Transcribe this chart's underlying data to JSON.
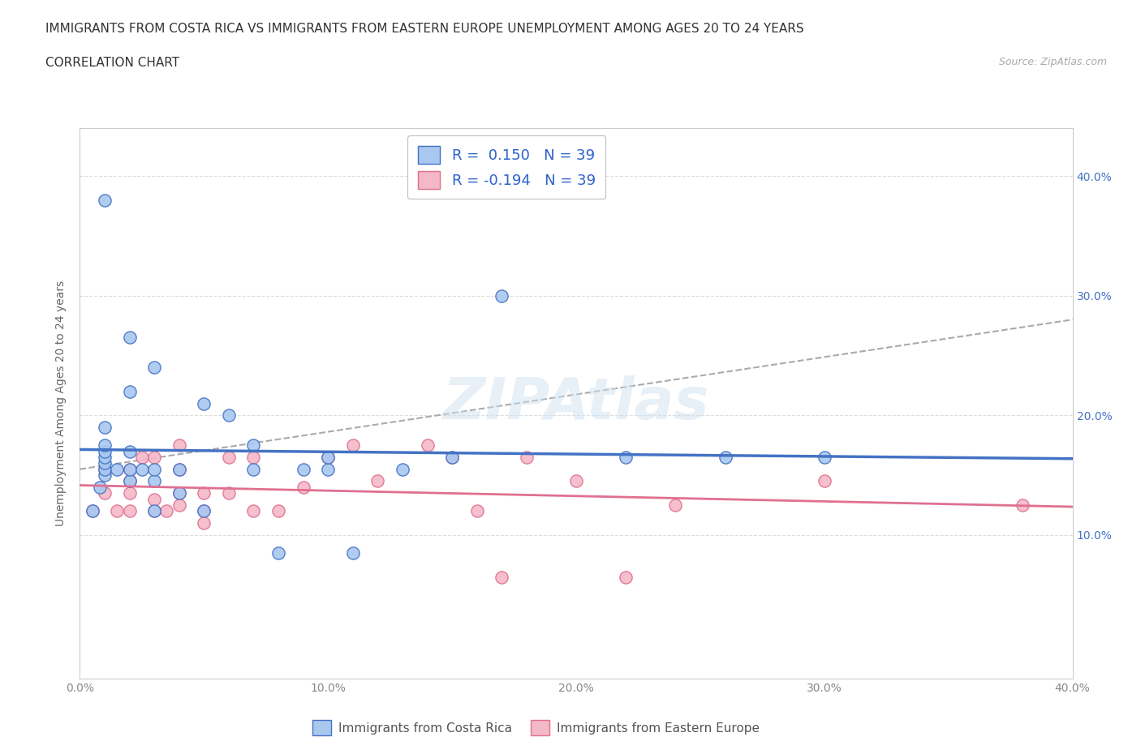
{
  "title_line1": "IMMIGRANTS FROM COSTA RICA VS IMMIGRANTS FROM EASTERN EUROPE UNEMPLOYMENT AMONG AGES 20 TO 24 YEARS",
  "title_line2": "CORRELATION CHART",
  "source_text": "Source: ZipAtlas.com",
  "ylabel": "Unemployment Among Ages 20 to 24 years",
  "xlim": [
    0.0,
    0.4
  ],
  "ylim": [
    -0.02,
    0.44
  ],
  "xtick_positions": [
    0.0,
    0.1,
    0.2,
    0.3,
    0.4
  ],
  "ytick_positions": [
    0.1,
    0.2,
    0.3,
    0.4
  ],
  "blue_color": "#a8c8f0",
  "pink_color": "#f4b8c8",
  "blue_line_color": "#4472c4",
  "pink_line_color": "#e07090",
  "gray_line_color": "#aaaaaa",
  "watermark_color": "#c8d8e8",
  "legend_label1": "Immigrants from Costa Rica",
  "legend_label2": "Immigrants from Eastern Europe",
  "blue_r": 0.15,
  "pink_r": -0.194,
  "blue_scatter_x": [
    0.005,
    0.008,
    0.01,
    0.01,
    0.01,
    0.01,
    0.01,
    0.01,
    0.01,
    0.015,
    0.02,
    0.02,
    0.02,
    0.02,
    0.02,
    0.025,
    0.03,
    0.03,
    0.03,
    0.03,
    0.04,
    0.04,
    0.05,
    0.05,
    0.06,
    0.07,
    0.07,
    0.08,
    0.09,
    0.1,
    0.1,
    0.11,
    0.13,
    0.15,
    0.17,
    0.22,
    0.26,
    0.3,
    0.01
  ],
  "blue_scatter_y": [
    0.12,
    0.14,
    0.15,
    0.155,
    0.16,
    0.165,
    0.17,
    0.175,
    0.19,
    0.155,
    0.145,
    0.155,
    0.17,
    0.22,
    0.265,
    0.155,
    0.12,
    0.145,
    0.155,
    0.24,
    0.135,
    0.155,
    0.12,
    0.21,
    0.2,
    0.155,
    0.175,
    0.085,
    0.155,
    0.155,
    0.165,
    0.085,
    0.155,
    0.165,
    0.3,
    0.165,
    0.165,
    0.165,
    0.38
  ],
  "pink_scatter_x": [
    0.005,
    0.01,
    0.01,
    0.015,
    0.02,
    0.02,
    0.02,
    0.02,
    0.025,
    0.03,
    0.03,
    0.03,
    0.035,
    0.04,
    0.04,
    0.04,
    0.04,
    0.05,
    0.05,
    0.05,
    0.06,
    0.06,
    0.07,
    0.07,
    0.08,
    0.09,
    0.1,
    0.11,
    0.12,
    0.14,
    0.15,
    0.16,
    0.17,
    0.18,
    0.2,
    0.22,
    0.24,
    0.3,
    0.38
  ],
  "pink_scatter_y": [
    0.12,
    0.135,
    0.155,
    0.12,
    0.12,
    0.135,
    0.145,
    0.155,
    0.165,
    0.12,
    0.13,
    0.165,
    0.12,
    0.125,
    0.135,
    0.155,
    0.175,
    0.11,
    0.12,
    0.135,
    0.135,
    0.165,
    0.12,
    0.165,
    0.12,
    0.14,
    0.165,
    0.175,
    0.145,
    0.175,
    0.165,
    0.12,
    0.065,
    0.165,
    0.145,
    0.065,
    0.125,
    0.145,
    0.125
  ],
  "background_color": "#ffffff",
  "grid_color": "#dddddd",
  "title_fontsize": 11,
  "axis_label_fontsize": 10,
  "tick_fontsize": 10
}
